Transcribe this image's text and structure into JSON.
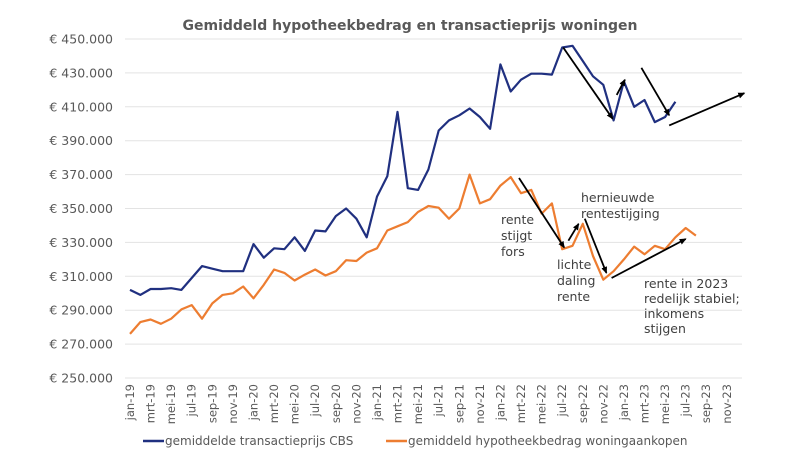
{
  "chart_data": {
    "type": "line",
    "title": "Gemiddeld hypotheekbedrag en transactieprijs woningen",
    "xlabel": "",
    "ylabel": "",
    "ylim": [
      250000,
      450000
    ],
    "yticks": [
      "€ 250.000",
      "€ 270.000",
      "€ 290.000",
      "€ 310.000",
      "€ 330.000",
      "€ 350.000",
      "€ 370.000",
      "€ 390.000",
      "€ 410.000",
      "€ 430.000",
      "€ 450.000"
    ],
    "ytick_values": [
      250000,
      270000,
      290000,
      310000,
      330000,
      350000,
      370000,
      390000,
      410000,
      430000,
      450000
    ],
    "grid": true,
    "legend_position": "bottom",
    "x_months_total": 59,
    "xtick_labels": [
      "jan-19",
      "mrt-19",
      "mei-19",
      "jul-19",
      "sep-19",
      "nov-19",
      "jan-20",
      "mrt-20",
      "mei-20",
      "jul-20",
      "sep-20",
      "nov-20",
      "jan-21",
      "mrt-21",
      "mei-21",
      "jul-21",
      "sep-21",
      "nov-21",
      "jan-22",
      "mrt-22",
      "mei-22",
      "jul-22",
      "sep-22",
      "nov-22",
      "jan-23",
      "mrt-23",
      "mei-23",
      "jul-23",
      "sep-23",
      "nov-23"
    ],
    "series": [
      {
        "name": "gemiddelde transactieprijs CBS",
        "color": "#203080",
        "values": [
          302000,
          299000,
          302500,
          302500,
          303000,
          302000,
          309000,
          316000,
          314500,
          313000,
          313000,
          313000,
          329000,
          321000,
          326500,
          326000,
          333000,
          325000,
          337000,
          336500,
          345500,
          350000,
          344000,
          333000,
          357000,
          369000,
          407000,
          362000,
          361000,
          373000,
          396000,
          402000,
          405000,
          409000,
          404000,
          397000,
          435000,
          419000,
          426000,
          429500,
          429500,
          429000,
          445000,
          446000,
          437000,
          428000,
          423000,
          402000,
          425000,
          410000,
          414000,
          401000,
          404000,
          413000
        ]
      },
      {
        "name": "gemiddeld hypotheekbedrag woningaankopen",
        "color": "#ed7d31",
        "values": [
          276000,
          283000,
          284500,
          282000,
          285000,
          290500,
          293000,
          285000,
          294000,
          299000,
          300000,
          304000,
          297000,
          305000,
          314000,
          312000,
          307500,
          311000,
          314000,
          310500,
          313000,
          319500,
          319000,
          324000,
          326500,
          337000,
          339500,
          342000,
          348000,
          351500,
          350500,
          344000,
          350000,
          370000,
          353000,
          355500,
          363500,
          368500,
          359000,
          361000,
          347000,
          353000,
          326000,
          328000,
          341000,
          322000,
          308000,
          313000,
          320000,
          327500,
          323000,
          328000,
          326000,
          333000,
          338500,
          334000
        ]
      }
    ],
    "annotations": [
      {
        "id": "rente-stijgt",
        "lines": [
          "rente",
          "stijgt",
          "fors"
        ]
      },
      {
        "id": "lichte-daling",
        "lines": [
          "lichte",
          "daling",
          "rente"
        ]
      },
      {
        "id": "hernieuwde",
        "lines": [
          "hernieuwde",
          "rentestijging"
        ]
      },
      {
        "id": "rente-2023",
        "lines": [
          "rente in 2023",
          "redelijk stabiel;",
          "inkomens",
          "stijgen"
        ]
      }
    ],
    "arrows": [
      {
        "id": "orange-down-2022",
        "from": [
          37.8,
          368000
        ],
        "to": [
          42.2,
          327000
        ]
      },
      {
        "id": "orange-up-jul22",
        "from": [
          42.6,
          331000
        ],
        "to": [
          43.6,
          341000
        ]
      },
      {
        "id": "orange-down-sep22",
        "from": [
          44.2,
          344000
        ],
        "to": [
          46.3,
          312000
        ]
      },
      {
        "id": "orange-trend-2023",
        "from": [
          46.8,
          309000
        ],
        "to": [
          54.0,
          332000
        ]
      },
      {
        "id": "blue-down-2022",
        "from": [
          42.1,
          445000
        ],
        "to": [
          46.9,
          403000
        ]
      },
      {
        "id": "blue-up-dec22",
        "from": [
          47.3,
          417000
        ],
        "to": [
          48.1,
          426000
        ]
      },
      {
        "id": "blue-down-2023",
        "from": [
          49.7,
          433000
        ],
        "to": [
          52.4,
          405000
        ]
      },
      {
        "id": "blue-trend-2023",
        "from": [
          52.4,
          399000
        ],
        "to": [
          59.7,
          418000
        ]
      }
    ]
  }
}
